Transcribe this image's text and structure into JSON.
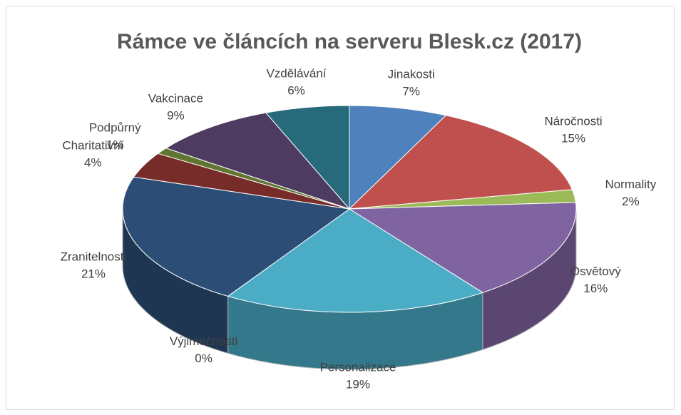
{
  "chart_data": {
    "type": "pie3d",
    "title": "Rámce ve článcích na serveru Blesk.cz (2017)",
    "categories": [
      "Jinakosti",
      "Náročnosti",
      "Normality",
      "Osvětový",
      "Personalizace",
      "Výjimečnosti",
      "Zranitelnosti",
      "Charitativní",
      "Podpůrný",
      "Vakcinace",
      "Vzdělávání"
    ],
    "values": [
      7,
      15,
      2,
      16,
      19,
      0,
      21,
      4,
      1,
      9,
      6
    ],
    "value_labels": [
      "7%",
      "15%",
      "2%",
      "16%",
      "19%",
      "0%",
      "21%",
      "4%",
      "1%",
      "9%",
      "6%"
    ],
    "colors": [
      "#4f81bd",
      "#c0504d",
      "#9bbb59",
      "#8064a2",
      "#4bacc6",
      "#f79646",
      "#2c4d75",
      "#772c2a",
      "#5f7530",
      "#4d3b62",
      "#276a7c"
    ]
  }
}
